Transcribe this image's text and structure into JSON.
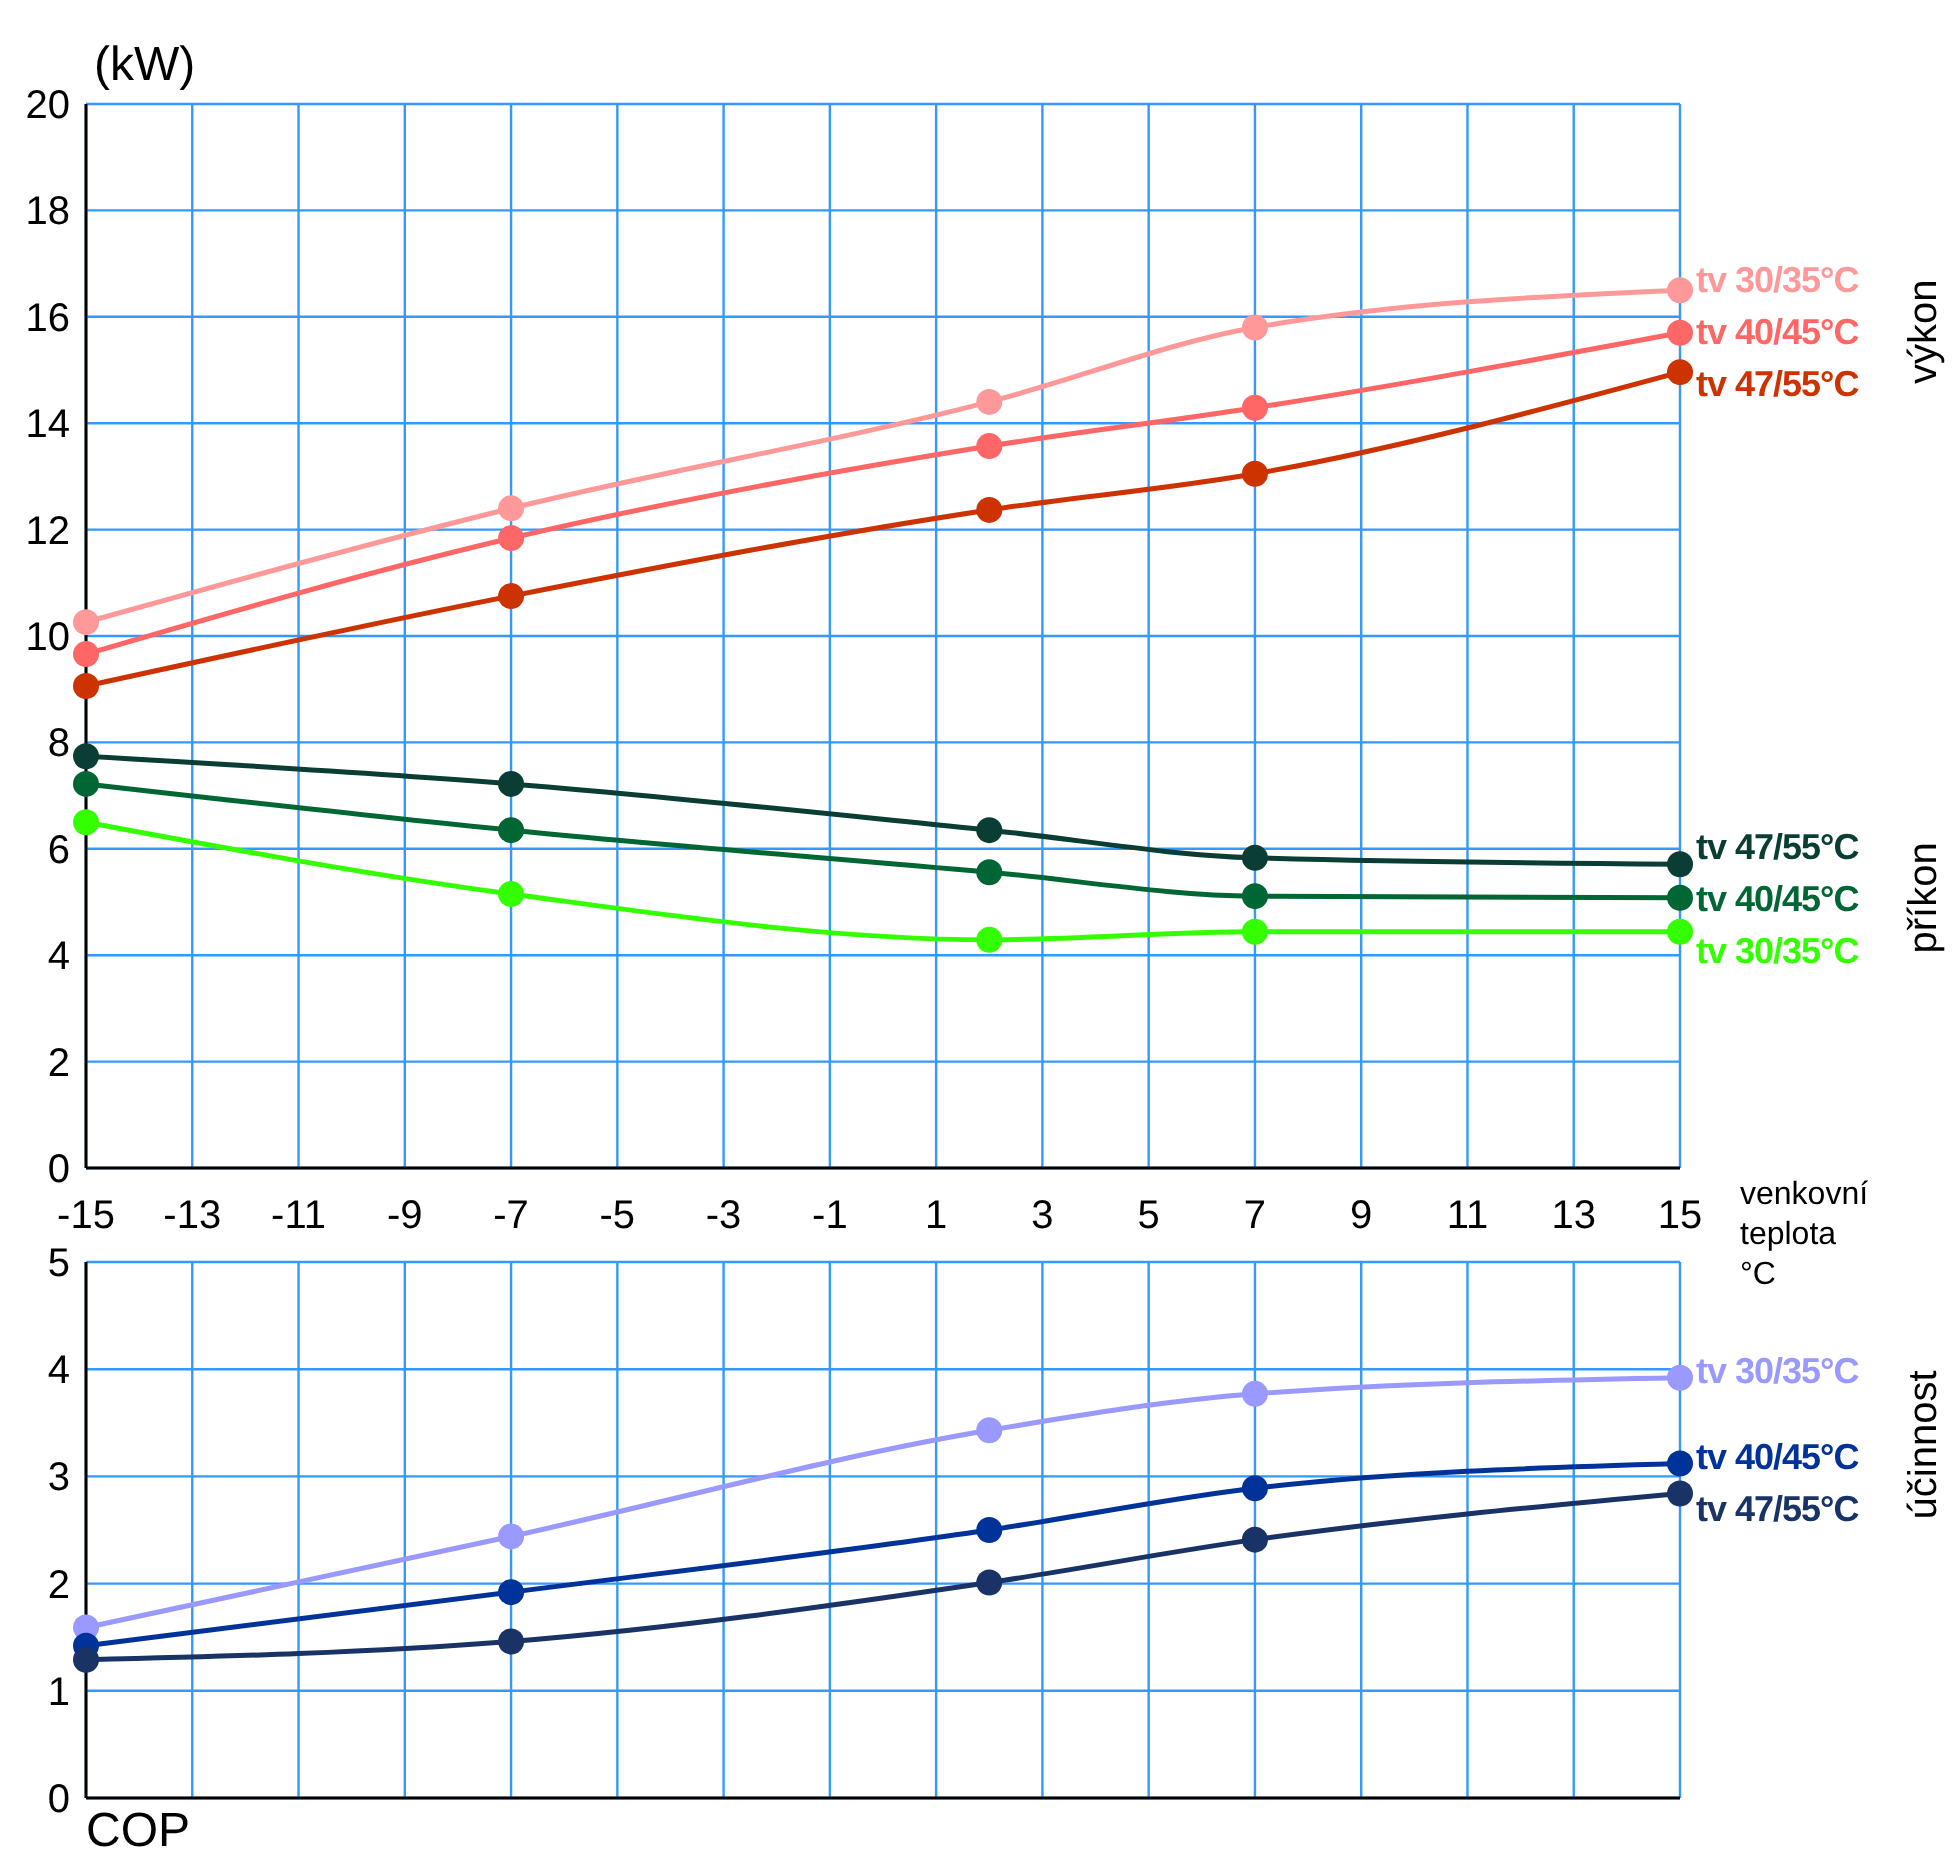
{
  "chart_data": [
    {
      "type": "line",
      "ylabel": "(kW)",
      "xlabel": "venkovní teplota °C",
      "annotations": [
        "výkon",
        "příkon"
      ],
      "x": [
        -15,
        -7,
        2,
        7,
        15
      ],
      "xlim": [
        -15,
        15
      ],
      "xticks": [
        -15,
        -13,
        -11,
        -9,
        -7,
        -5,
        -3,
        -1,
        1,
        3,
        5,
        7,
        9,
        11,
        13,
        15
      ],
      "ylim": [
        0,
        20
      ],
      "yticks": [
        0,
        2,
        4,
        6,
        8,
        10,
        12,
        14,
        16,
        18,
        20
      ],
      "grid": true,
      "marker": "circle",
      "series": [
        {
          "name": "tv 30/35°C",
          "color": "#ff9999",
          "values": [
            10.26,
            12.4,
            14.4,
            15.8,
            16.5
          ]
        },
        {
          "name": "tv 40/45°C",
          "color": "#ff6666",
          "values": [
            9.66,
            11.84,
            13.57,
            14.29,
            15.7
          ]
        },
        {
          "name": "tv 47/55°C",
          "color": "#cc3300",
          "values": [
            9.06,
            10.75,
            12.37,
            13.05,
            14.96
          ]
        },
        {
          "name": "tv 47/55°C",
          "color": "#0a3d33",
          "values": [
            7.74,
            7.22,
            6.35,
            5.83,
            5.71
          ]
        },
        {
          "name": "tv 40/45°C",
          "color": "#006633",
          "values": [
            7.22,
            6.35,
            5.56,
            5.11,
            5.08
          ]
        },
        {
          "name": "tv 30/35°C",
          "color": "#33ff00",
          "values": [
            6.5,
            5.15,
            4.29,
            4.44,
            4.44
          ]
        }
      ]
    },
    {
      "type": "line",
      "annotations": [
        "účinnost",
        "COP"
      ],
      "x": [
        -15,
        -7,
        2,
        7,
        15
      ],
      "xlim": [
        -15,
        15
      ],
      "ylim": [
        0,
        5
      ],
      "yticks": [
        0,
        1,
        2,
        3,
        4,
        5
      ],
      "tick_labels": "y",
      "grid": true,
      "marker": "circle",
      "series": [
        {
          "name": "tv 30/35°C",
          "color": "#9999ff",
          "values": [
            1.59,
            2.44,
            3.43,
            3.77,
            3.92
          ]
        },
        {
          "name": "tv 40/45°C",
          "color": "#003399",
          "values": [
            1.42,
            1.92,
            2.5,
            2.89,
            3.12
          ]
        },
        {
          "name": "tv 47/55°C",
          "color": "#1a3366",
          "values": [
            1.29,
            1.46,
            2.01,
            2.41,
            2.84
          ]
        }
      ]
    }
  ]
}
